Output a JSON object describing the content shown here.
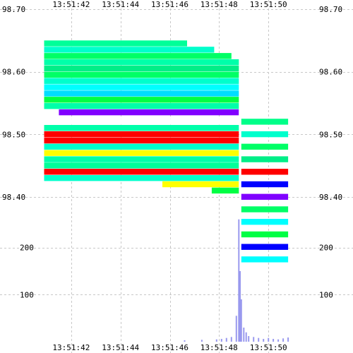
{
  "chart_data": {
    "type": "heatmap",
    "title": "",
    "xlabel": "",
    "ylabel": "",
    "x_ticks": [
      "13:51:42",
      "13:51:44",
      "13:51:46",
      "13:51:48",
      "13:51:50"
    ],
    "x_tick_seconds": [
      42,
      44,
      46,
      48,
      50
    ],
    "price_ticks": [
      "98.70",
      "98.60",
      "98.50",
      "98.40"
    ],
    "price_tick_values": [
      98.7,
      98.6,
      98.5,
      98.4
    ],
    "price_range": [
      98.3,
      98.7
    ],
    "volume_ticks": [
      "200",
      "100"
    ],
    "volume_tick_values": [
      200,
      100
    ],
    "volume_range": [
      0,
      300
    ],
    "time_range_seconds": [
      40.6,
      51.8
    ],
    "grid": true,
    "palette": [
      "#ff0000",
      "#ffff00",
      "#00ff00",
      "#00ff99",
      "#00ffff",
      "#00aaff",
      "#0000ff",
      "#8000ff"
    ],
    "bands": [
      {
        "price": 98.645,
        "t0": 40.9,
        "t1": 46.7,
        "color": "#00ff99"
      },
      {
        "price": 98.635,
        "t0": 40.9,
        "t1": 47.8,
        "color": "#00ffcc"
      },
      {
        "price": 98.625,
        "t0": 40.9,
        "t1": 48.5,
        "color": "#00ff66"
      },
      {
        "price": 98.615,
        "t0": 40.9,
        "t1": 48.8,
        "color": "#00ffaa"
      },
      {
        "price": 98.605,
        "t0": 40.9,
        "t1": 48.8,
        "color": "#00ee88"
      },
      {
        "price": 98.595,
        "t0": 40.9,
        "t1": 48.8,
        "color": "#00ff66"
      },
      {
        "price": 98.585,
        "t0": 40.9,
        "t1": 48.8,
        "color": "#00ffcc"
      },
      {
        "price": 98.575,
        "t0": 40.9,
        "t1": 48.8,
        "color": "#00ffff"
      },
      {
        "price": 98.565,
        "t0": 40.9,
        "t1": 48.8,
        "color": "#00ddff"
      },
      {
        "price": 98.555,
        "t0": 40.9,
        "t1": 48.8,
        "color": "#00ff44"
      },
      {
        "price": 98.545,
        "t0": 40.9,
        "t1": 48.8,
        "color": "#00ffaa"
      },
      {
        "price": 98.535,
        "t0": 41.5,
        "t1": 48.8,
        "color": "#8000ff"
      },
      {
        "price": 98.52,
        "t0": 40.9,
        "t1": 48.8,
        "color": "#ffffff"
      },
      {
        "price": 98.51,
        "t0": 40.9,
        "t1": 48.8,
        "color": "#00ffaa"
      },
      {
        "price": 98.5,
        "t0": 40.9,
        "t1": 48.8,
        "color": "#ff0000"
      },
      {
        "price": 98.49,
        "t0": 40.9,
        "t1": 48.8,
        "color": "#ff0000"
      },
      {
        "price": 98.48,
        "t0": 40.9,
        "t1": 48.8,
        "color": "#00ffcc"
      },
      {
        "price": 98.47,
        "t0": 40.9,
        "t1": 48.8,
        "color": "#ffff00"
      },
      {
        "price": 98.46,
        "t0": 40.9,
        "t1": 48.8,
        "color": "#00ffaa"
      },
      {
        "price": 98.45,
        "t0": 40.9,
        "t1": 48.8,
        "color": "#00ff99"
      },
      {
        "price": 98.44,
        "t0": 40.9,
        "t1": 48.8,
        "color": "#ff0000"
      },
      {
        "price": 98.43,
        "t0": 40.9,
        "t1": 48.8,
        "color": "#00ffcc"
      },
      {
        "price": 98.42,
        "t0": 45.7,
        "t1": 48.8,
        "color": "#ffff00"
      },
      {
        "price": 98.41,
        "t0": 47.7,
        "t1": 48.8,
        "color": "#00ff44"
      },
      {
        "price": 98.52,
        "t0": 48.9,
        "t1": 50.8,
        "color": "#00ff88"
      },
      {
        "price": 98.5,
        "t0": 48.9,
        "t1": 50.8,
        "color": "#00ffcc"
      },
      {
        "price": 98.48,
        "t0": 48.9,
        "t1": 50.8,
        "color": "#00ff66"
      },
      {
        "price": 98.46,
        "t0": 48.9,
        "t1": 50.8,
        "color": "#00ee88"
      },
      {
        "price": 98.44,
        "t0": 48.9,
        "t1": 50.8,
        "color": "#ff0000"
      },
      {
        "price": 98.42,
        "t0": 48.9,
        "t1": 50.8,
        "color": "#0000ff"
      },
      {
        "price": 98.4,
        "t0": 48.9,
        "t1": 50.8,
        "color": "#8000ff"
      },
      {
        "price": 98.38,
        "t0": 48.9,
        "t1": 50.8,
        "color": "#00ff66"
      },
      {
        "price": 98.36,
        "t0": 48.9,
        "t1": 50.8,
        "color": "#00ffff"
      },
      {
        "price": 98.34,
        "t0": 48.9,
        "t1": 50.8,
        "color": "#00ff44"
      },
      {
        "price": 98.32,
        "t0": 48.9,
        "t1": 50.8,
        "color": "#0000ff"
      },
      {
        "price": 98.3,
        "t0": 48.9,
        "t1": 50.8,
        "color": "#00ffff"
      }
    ],
    "volume_bars": [
      {
        "t": 46.6,
        "v": 3
      },
      {
        "t": 47.3,
        "v": 4
      },
      {
        "t": 47.9,
        "v": 5
      },
      {
        "t": 48.1,
        "v": 6
      },
      {
        "t": 48.3,
        "v": 8
      },
      {
        "t": 48.5,
        "v": 10
      },
      {
        "t": 48.7,
        "v": 55
      },
      {
        "t": 48.8,
        "v": 260
      },
      {
        "t": 48.85,
        "v": 150
      },
      {
        "t": 48.9,
        "v": 90
      },
      {
        "t": 49.0,
        "v": 30
      },
      {
        "t": 49.1,
        "v": 20
      },
      {
        "t": 49.2,
        "v": 12
      },
      {
        "t": 49.4,
        "v": 10
      },
      {
        "t": 49.6,
        "v": 8
      },
      {
        "t": 49.8,
        "v": 6
      },
      {
        "t": 50.0,
        "v": 8
      },
      {
        "t": 50.2,
        "v": 6
      },
      {
        "t": 50.4,
        "v": 5
      },
      {
        "t": 50.6,
        "v": 7
      },
      {
        "t": 50.8,
        "v": 9
      }
    ],
    "volume_color": "#9999ee"
  }
}
